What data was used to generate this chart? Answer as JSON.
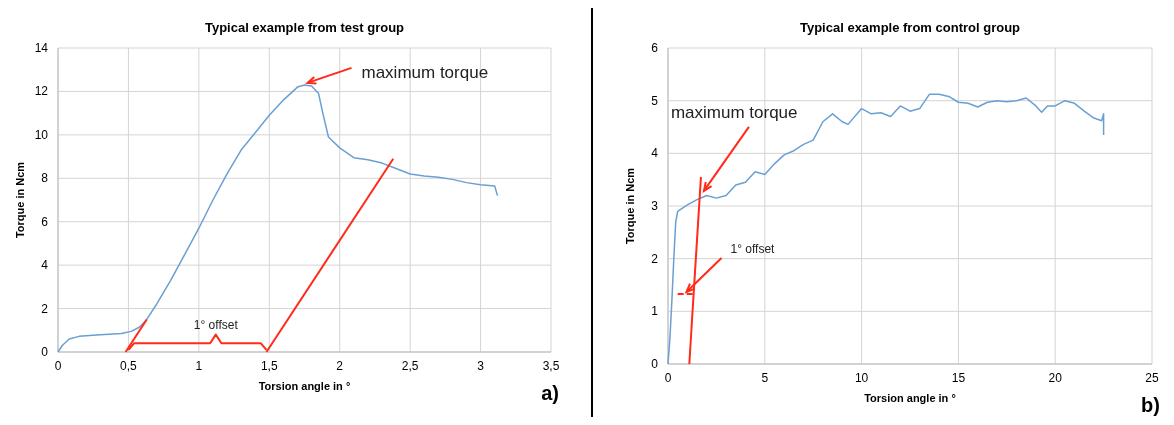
{
  "chart_data": [
    {
      "type": "line",
      "title": "Typical example from test group",
      "xlabel": "Torsion angle in °",
      "ylabel": "Torque in Ncm",
      "xlim": [
        0,
        3.5
      ],
      "xticks": [
        0,
        {
          "value": 0.5,
          "label": "0,5"
        },
        1,
        {
          "value": 1.5,
          "label": "1,5"
        },
        2,
        {
          "value": 2.5,
          "label": "2,5"
        },
        3,
        {
          "value": 3.5,
          "label": "3,5"
        }
      ],
      "ylim": [
        0,
        14
      ],
      "yticks": [
        0,
        2,
        4,
        6,
        8,
        10,
        12,
        14
      ],
      "grid": true,
      "marker": "none",
      "series": [
        {
          "color": "#6a9fd4",
          "x": [
            0,
            0.03,
            0.08,
            0.15,
            0.3,
            0.45,
            0.52,
            0.58,
            0.63,
            0.7,
            0.8,
            0.9,
            1.0,
            1.1,
            1.2,
            1.3,
            1.4,
            1.5,
            1.6,
            1.7,
            1.75,
            1.8,
            1.85,
            1.88,
            1.92,
            2.0,
            2.1,
            2.2,
            2.3,
            2.4,
            2.5,
            2.6,
            2.7,
            2.8,
            2.9,
            3.0,
            3.1,
            3.12
          ],
          "values": [
            0,
            0.3,
            0.6,
            0.72,
            0.8,
            0.85,
            0.95,
            1.15,
            1.5,
            2.2,
            3.3,
            4.5,
            5.7,
            7.0,
            8.2,
            9.3,
            10.1,
            10.9,
            11.6,
            12.2,
            12.3,
            12.25,
            11.9,
            11.0,
            9.9,
            9.4,
            8.95,
            8.85,
            8.7,
            8.45,
            8.2,
            8.1,
            8.05,
            7.95,
            7.8,
            7.7,
            7.65,
            7.2
          ]
        },
        {
          "type": "line",
          "color": "#ff2a1a",
          "x": [
            0.48,
            0.63
          ],
          "values": [
            0,
            1.5
          ]
        },
        {
          "type": "line",
          "color": "#ff2a1a",
          "x": [
            1.48,
            2.38
          ],
          "values": [
            0,
            8.9
          ]
        },
        {
          "type": "line",
          "color": "#ff2a1a",
          "x": [
            0.5,
            0.54,
            1.08,
            1.12,
            1.16,
            1.44,
            1.48
          ],
          "values": [
            0.1,
            0.4,
            0.4,
            0.8,
            0.4,
            0.4,
            0.1
          ]
        }
      ],
      "annotations": [
        {
          "text": "maximum torque",
          "x": 1.75,
          "y": 12.3
        },
        "1° offset",
        "a)"
      ]
    },
    {
      "type": "line",
      "title": "Typical example from control group",
      "xlabel": "Torsion angle in °",
      "ylabel": "Torque in Ncm",
      "xlim": [
        0,
        25
      ],
      "xticks": [
        0,
        5,
        10,
        15,
        20,
        25
      ],
      "ylim": [
        0,
        6
      ],
      "yticks": [
        0,
        1,
        2,
        3,
        4,
        5,
        6
      ],
      "grid": true,
      "marker": "none",
      "series": [
        {
          "color": "#6a9fd4",
          "x": [
            0,
            0.1,
            0.2,
            0.3,
            0.4,
            0.5,
            1,
            1.5,
            2,
            2.5,
            3,
            3.5,
            4,
            4.5,
            5,
            5.5,
            6,
            6.5,
            7,
            7.5,
            8,
            8.5,
            9,
            9.3,
            10,
            10.5,
            11,
            11.5,
            12,
            12.5,
            13,
            13.5,
            14,
            14.5,
            15,
            15.5,
            16,
            16.5,
            17,
            17.5,
            18,
            18.5,
            19,
            19.3,
            19.6,
            20,
            20.5,
            21,
            21.5,
            22,
            22.4,
            22.5,
            22.5
          ],
          "values": [
            0,
            0.5,
            1.2,
            2.0,
            2.7,
            2.9,
            3.02,
            3.12,
            3.2,
            3.15,
            3.2,
            3.4,
            3.45,
            3.65,
            3.6,
            3.8,
            3.97,
            4.05,
            4.17,
            4.25,
            4.6,
            4.75,
            4.6,
            4.55,
            4.85,
            4.75,
            4.77,
            4.7,
            4.9,
            4.8,
            4.85,
            5.12,
            5.12,
            5.08,
            4.97,
            4.95,
            4.88,
            4.97,
            5.0,
            4.98,
            5.0,
            5.05,
            4.9,
            4.78,
            4.9,
            4.9,
            5.0,
            4.95,
            4.8,
            4.67,
            4.62,
            4.75,
            4.35
          ]
        },
        {
          "type": "line",
          "color": "#ff2a1a",
          "x": [
            1.1,
            1.7
          ],
          "values": [
            0,
            3.55
          ]
        },
        {
          "type": "line",
          "color": "#ff2a1a",
          "line_style": "dashed",
          "x": [
            0.5,
            1.4
          ],
          "values": [
            1.33,
            1.33
          ]
        }
      ],
      "annotations": [
        {
          "text": "maximum torque",
          "x": 1.7,
          "y": 3.25
        },
        {
          "text": "1° offset",
          "x": 0.8,
          "y": 1.33
        },
        "b)"
      ]
    }
  ]
}
